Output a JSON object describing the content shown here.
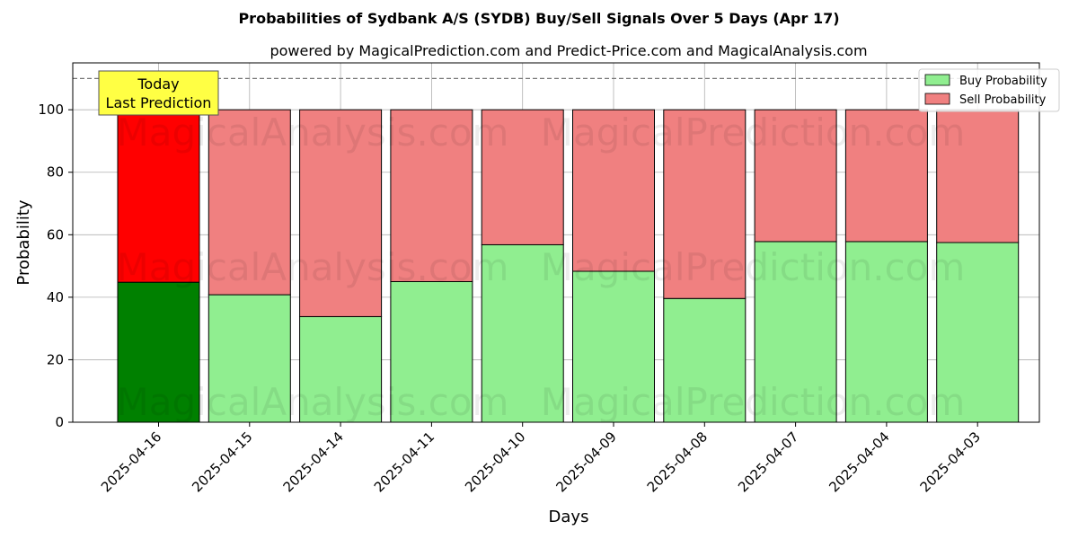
{
  "chart_data": {
    "type": "bar",
    "stacked": true,
    "title": "Probabilities of Sydbank A/S (SYDB) Buy/Sell Signals Over 5 Days (Apr 17)",
    "subtitle": "powered by MagicalPrediction.com and Predict-Price.com and MagicalAnalysis.com",
    "xlabel": "Days",
    "ylabel": "Probability",
    "ylim": [
      0,
      115
    ],
    "yticks": [
      0,
      20,
      40,
      60,
      80,
      100
    ],
    "grid": true,
    "legend_position": "top-right",
    "reference_line": 110,
    "categories": [
      "2025-04-16",
      "2025-04-15",
      "2025-04-14",
      "2025-04-11",
      "2025-04-10",
      "2025-04-09",
      "2025-04-08",
      "2025-04-07",
      "2025-04-04",
      "2025-04-03"
    ],
    "series": [
      {
        "name": "Buy Probability",
        "color": "#90ee90",
        "highlight_color": "#008000",
        "values": [
          44.8,
          40.8,
          33.8,
          45.0,
          56.8,
          48.3,
          39.6,
          57.8,
          57.8,
          57.5
        ]
      },
      {
        "name": "Sell Probability",
        "color": "#f08080",
        "highlight_color": "#ff0000",
        "values": [
          55.2,
          59.2,
          66.2,
          55.0,
          43.2,
          51.7,
          60.4,
          42.2,
          42.2,
          42.5
        ]
      }
    ],
    "annotation": {
      "lines": [
        "Today",
        "Last Prediction"
      ],
      "category_index": 0,
      "background": "#ffff44"
    },
    "watermarks": [
      "MagicalAnalysis.com",
      "MagicalPrediction.com"
    ]
  }
}
